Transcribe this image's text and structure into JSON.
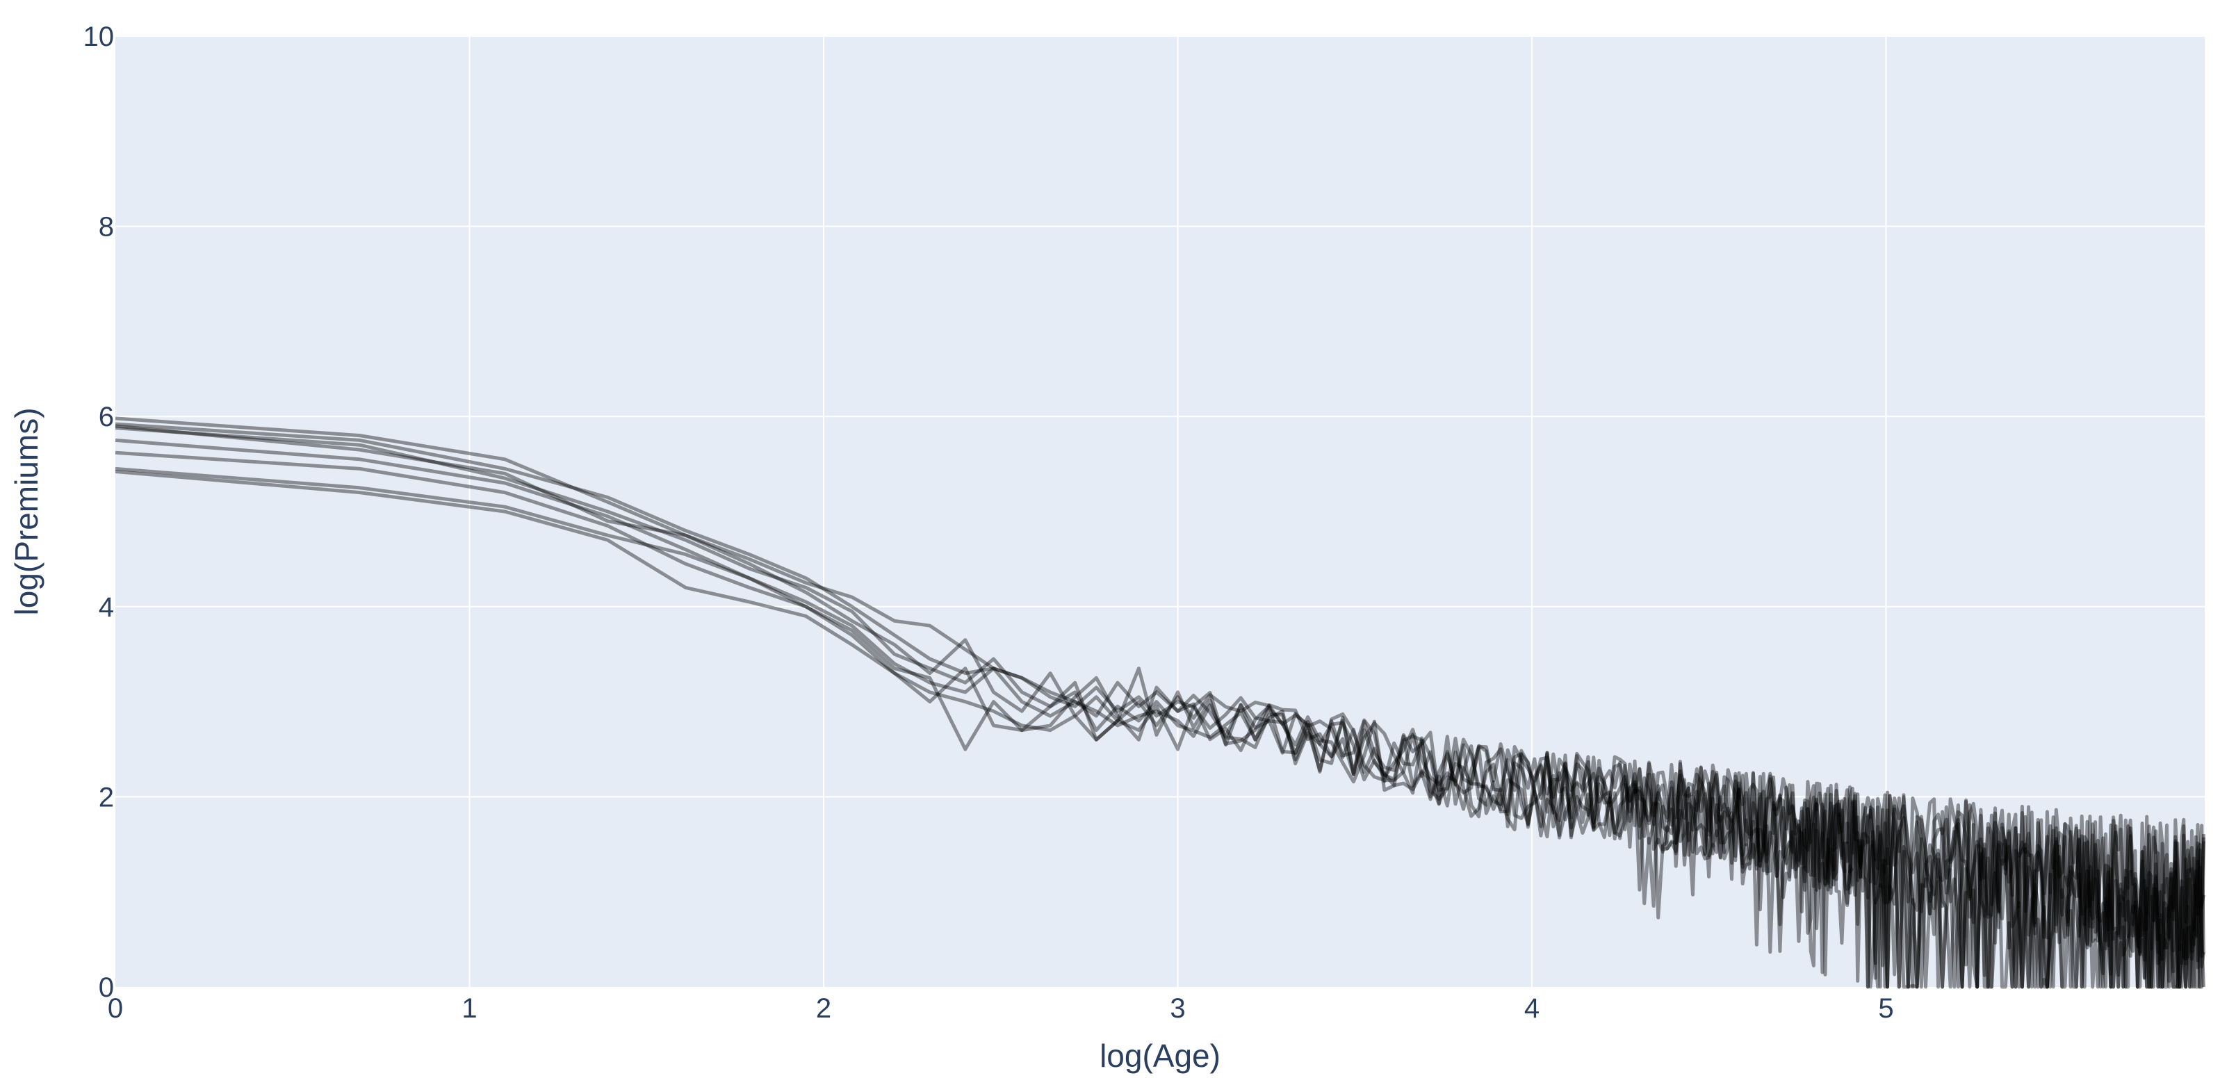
{
  "chart_data": {
    "type": "line",
    "title": "",
    "xlabel": "log(Age)",
    "ylabel": "log(Premiums)",
    "xlim": [
      0,
      5.9
    ],
    "ylim": [
      0,
      10
    ],
    "xticks": [
      0,
      1,
      2,
      3,
      4,
      5
    ],
    "yticks": [
      0,
      2,
      4,
      6,
      8,
      10
    ],
    "grid": true,
    "legend": "none",
    "colors": {
      "plot_bg": "#e5ecf6",
      "line": "#000000",
      "grid": "#ffffff",
      "text": "#2a3f5f"
    },
    "line_opacity": 0.4,
    "series": [
      {
        "x": [
          0,
          0.69,
          1.1,
          1.39,
          1.61,
          1.79,
          1.95,
          2.08,
          2.2,
          2.3,
          2.4,
          2.48,
          2.56,
          2.64,
          2.71,
          2.77,
          2.83,
          2.89,
          2.94,
          3.0
        ],
        "y": [
          5.98,
          5.8,
          5.55,
          5.1,
          4.75,
          4.5,
          4.25,
          4.1,
          3.85,
          3.8,
          3.55,
          3.35,
          3.25,
          3.05,
          2.95,
          3.15,
          2.9,
          3.05,
          2.85,
          3.0
        ]
      },
      {
        "x": [
          0,
          0.69,
          1.1,
          1.39,
          1.61,
          1.79,
          1.95,
          2.08,
          2.2,
          2.3,
          2.4,
          2.48,
          2.56,
          2.64,
          2.71,
          2.77,
          2.83,
          2.89,
          2.94,
          3.0
        ],
        "y": [
          5.92,
          5.75,
          5.45,
          5.15,
          4.8,
          4.55,
          4.3,
          4.0,
          3.7,
          3.45,
          3.3,
          3.35,
          3.25,
          3.1,
          3.0,
          2.85,
          3.2,
          2.95,
          3.1,
          2.9
        ]
      },
      {
        "x": [
          0,
          0.69,
          1.1,
          1.39,
          1.61,
          1.79,
          1.95,
          2.08,
          2.2,
          2.3,
          2.4,
          2.48,
          2.56,
          2.64,
          2.71,
          2.77,
          2.83,
          2.89,
          2.94,
          3.0
        ],
        "y": [
          5.88,
          5.7,
          5.35,
          5.0,
          4.7,
          4.4,
          4.2,
          3.95,
          3.5,
          3.35,
          3.2,
          3.45,
          3.1,
          2.95,
          3.1,
          2.7,
          2.95,
          2.8,
          3.0,
          2.75
        ]
      },
      {
        "x": [
          0,
          0.69,
          1.1,
          1.39,
          1.61,
          1.79,
          1.95,
          2.08,
          2.2,
          2.3,
          2.4,
          2.48,
          2.56,
          2.64,
          2.71,
          2.77,
          2.83,
          2.89,
          2.94,
          3.0
        ],
        "y": [
          5.75,
          5.55,
          5.3,
          4.95,
          4.6,
          4.3,
          4.05,
          3.8,
          3.4,
          3.2,
          3.1,
          3.35,
          3.0,
          2.85,
          3.0,
          2.9,
          2.75,
          2.85,
          2.9,
          2.8
        ]
      },
      {
        "x": [
          0,
          0.69,
          1.1,
          1.39,
          1.61,
          1.79,
          1.95,
          2.08,
          2.2,
          2.3,
          2.4,
          2.48,
          2.56,
          2.64,
          2.71,
          2.77,
          2.83,
          2.89,
          2.94,
          3.0
        ],
        "y": [
          5.62,
          5.45,
          5.2,
          4.85,
          4.45,
          4.2,
          4.0,
          3.7,
          3.3,
          3.1,
          3.0,
          2.9,
          2.75,
          2.7,
          2.85,
          2.6,
          2.8,
          2.7,
          2.95,
          2.5
        ]
      },
      {
        "x": [
          0,
          0.69,
          1.1,
          1.39,
          1.61,
          1.79,
          1.95,
          2.08,
          2.2,
          2.3,
          2.4,
          2.48,
          2.56,
          2.64,
          2.71,
          2.77,
          2.83,
          2.89,
          2.94,
          3.0
        ],
        "y": [
          5.45,
          5.25,
          5.05,
          4.75,
          4.55,
          4.3,
          4.0,
          3.75,
          3.35,
          3.25,
          2.5,
          3.0,
          2.7,
          2.95,
          3.2,
          2.6,
          2.8,
          3.0,
          2.75,
          3.05
        ]
      },
      {
        "x": [
          0,
          0.69,
          1.1,
          1.39,
          1.61,
          1.79,
          1.95,
          2.08,
          2.2,
          2.3,
          2.4,
          2.48,
          2.56,
          2.64,
          2.71,
          2.77,
          2.83,
          2.89,
          2.94,
          3.0
        ],
        "y": [
          5.42,
          5.2,
          5.0,
          4.7,
          4.2,
          4.05,
          3.9,
          3.6,
          3.3,
          3.0,
          3.35,
          2.75,
          2.7,
          2.75,
          3.05,
          3.25,
          2.85,
          2.6,
          3.15,
          2.9
        ]
      },
      {
        "x": [
          0,
          0.69,
          1.1,
          1.39,
          1.61,
          1.79,
          1.95,
          2.08,
          2.2,
          2.3,
          2.4,
          2.48,
          2.56,
          2.64,
          2.71,
          2.77,
          2.83,
          2.89,
          2.94,
          3.0
        ],
        "y": [
          5.9,
          5.65,
          5.4,
          4.9,
          4.75,
          4.45,
          4.15,
          3.85,
          3.6,
          3.3,
          3.65,
          3.1,
          2.9,
          3.3,
          2.85,
          3.05,
          2.8,
          3.35,
          2.65,
          3.1
        ]
      }
    ],
    "noise_region": {
      "x_start": 3.0,
      "x_end": 5.9,
      "trend": [
        [
          3.0,
          2.9
        ],
        [
          3.5,
          2.5
        ],
        [
          4.0,
          2.05
        ],
        [
          4.5,
          1.85
        ],
        [
          5.0,
          1.45
        ],
        [
          5.5,
          1.15
        ],
        [
          5.9,
          0.95
        ]
      ],
      "spread": [
        [
          3.0,
          0.25
        ],
        [
          3.5,
          0.35
        ],
        [
          4.0,
          0.45
        ],
        [
          4.5,
          0.5
        ],
        [
          5.0,
          0.6
        ],
        [
          5.9,
          0.8
        ]
      ]
    }
  }
}
